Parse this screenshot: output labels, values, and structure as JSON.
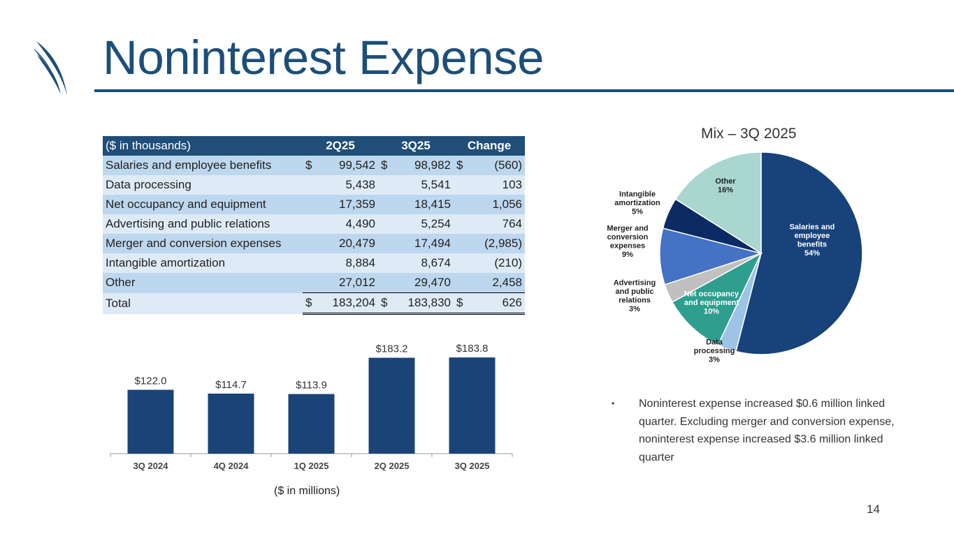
{
  "header": {
    "title": "Noninterest Expense",
    "accent": "#1d4e79"
  },
  "table": {
    "columns": [
      "($ in thousands)",
      "2Q25",
      "3Q25",
      "Change"
    ],
    "rows": [
      {
        "label": "Salaries and employee benefits",
        "q2": "99,542",
        "q3": "98,982",
        "change": "(560)",
        "dollar": true
      },
      {
        "label": "Data processing",
        "q2": "5,438",
        "q3": "5,541",
        "change": "103",
        "dollar": false
      },
      {
        "label": "Net occupancy and equipment",
        "q2": "17,359",
        "q3": "18,415",
        "change": "1,056",
        "dollar": false
      },
      {
        "label": "Advertising and public relations",
        "q2": "4,490",
        "q3": "5,254",
        "change": "764",
        "dollar": false
      },
      {
        "label": "Merger and conversion expenses",
        "q2": "20,479",
        "q3": "17,494",
        "change": "(2,985)",
        "dollar": false
      },
      {
        "label": "Intangible amortization",
        "q2": "8,884",
        "q3": "8,674",
        "change": "(210)",
        "dollar": false
      },
      {
        "label": "Other",
        "q2": "27,012",
        "q3": "29,470",
        "change": "2,458",
        "dollar": false
      },
      {
        "label": "Total",
        "q2": "183,204",
        "q3": "183,830",
        "change": "626",
        "dollar": true
      }
    ],
    "dollar_sign": "$"
  },
  "chart_data": [
    {
      "type": "bar",
      "categories": [
        "3Q 2024",
        "4Q 2024",
        "1Q 2025",
        "2Q 2025",
        "3Q 2025"
      ],
      "values": [
        122.0,
        114.7,
        113.9,
        183.2,
        183.8
      ],
      "data_labels": [
        "$122.0",
        "$114.7",
        "$113.9",
        "$183.2",
        "$183.8"
      ],
      "note": "($ in millions)",
      "color": "#1a4478",
      "ylim": [
        0,
        200
      ]
    },
    {
      "type": "pie",
      "title": "Mix – 3Q 2025",
      "slices": [
        {
          "label": [
            "Salaries and",
            "employee",
            "benefits",
            "54%"
          ],
          "value": 54,
          "color": "#17427a",
          "text_color": "#ffffff"
        },
        {
          "label": [
            "Data",
            "processing",
            "3%"
          ],
          "value": 3,
          "color": "#9dc3e6",
          "text_color": "#222222"
        },
        {
          "label": [
            "Net occupancy",
            "and equipment",
            "10%"
          ],
          "value": 10,
          "color": "#2e9e8e",
          "text_color": "#ffffff"
        },
        {
          "label": [
            "Advertising",
            "and public",
            "relations",
            "3%"
          ],
          "value": 3,
          "color": "#c0c0c0",
          "text_color": "#222222"
        },
        {
          "label": [
            "Merger and",
            "conversion",
            "expenses",
            "9%"
          ],
          "value": 9,
          "color": "#4472c4",
          "text_color": "#222222"
        },
        {
          "label": [
            "Intangible",
            "amortization",
            "5%"
          ],
          "value": 5,
          "color": "#0c2a63",
          "text_color": "#222222"
        },
        {
          "label": [
            "Other",
            "16%"
          ],
          "value": 16,
          "color": "#a9d6cf",
          "text_color": "#222222"
        }
      ]
    }
  ],
  "commentary": {
    "bullet": "•",
    "text": "Noninterest expense increased $0.6 million linked quarter. Excluding merger and conversion expense, noninterest expense increased $3.6 million linked quarter"
  },
  "page_number": "14"
}
